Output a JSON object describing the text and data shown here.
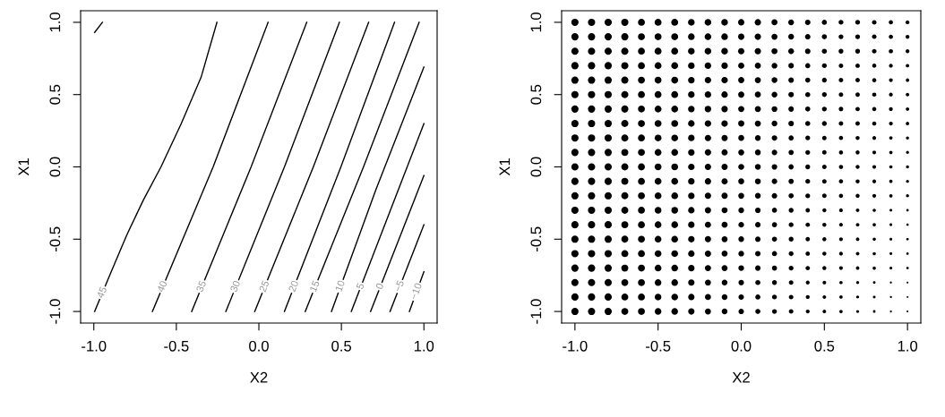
{
  "chart_data": [
    {
      "type": "line",
      "xlabel": "X2",
      "ylabel": "X1",
      "xlim": [
        -1.08,
        1.08
      ],
      "ylim": [
        -1.08,
        1.08
      ],
      "xticks": [
        {
          "value": -1,
          "label": "-1.0"
        },
        {
          "value": -0.5,
          "label": "-0.5"
        },
        {
          "value": 0,
          "label": "0.0"
        },
        {
          "value": 0.5,
          "label": "0.5"
        },
        {
          "value": 1,
          "label": "1.0"
        }
      ],
      "yticks": [
        {
          "value": -1,
          "label": "-1.0"
        },
        {
          "value": -0.5,
          "label": "-0.5"
        },
        {
          "value": 0,
          "label": "0.0"
        },
        {
          "value": 0.5,
          "label": "0.5"
        },
        {
          "value": 1,
          "label": "1.0"
        }
      ],
      "grid": false,
      "legend": false,
      "marker": "none",
      "line_style": "solid",
      "series": [
        {
          "color": "#000000",
          "x": [
            -0.995,
            -0.948
          ],
          "values": [
            0.93,
            1.0
          ]
        },
        {
          "name": "45",
          "color": "#000000",
          "x": [
            -0.995,
            -0.9,
            -0.8,
            -0.7,
            -0.593,
            -0.47,
            -0.35,
            -0.254
          ],
          "values": [
            -1.0,
            -0.74,
            -0.47,
            -0.23,
            0.0,
            0.3,
            0.62,
            1.0
          ]
        },
        {
          "name": "40",
          "color": "#000000",
          "x": [
            -0.645,
            -0.277,
            0.056
          ],
          "values": [
            -1.0,
            0.0,
            1.0
          ]
        },
        {
          "name": "35",
          "color": "#000000",
          "x": [
            -0.407,
            -0.047,
            0.29
          ],
          "values": [
            -1.0,
            0.0,
            1.0
          ]
        },
        {
          "name": "30",
          "color": "#000000",
          "x": [
            -0.2,
            0.155,
            0.488
          ],
          "values": [
            -1.0,
            0.0,
            1.0
          ]
        },
        {
          "name": "25",
          "color": "#000000",
          "x": [
            -0.025,
            0.33,
            0.665
          ],
          "values": [
            -1.0,
            0.0,
            1.0
          ]
        },
        {
          "name": "20",
          "color": "#000000",
          "x": [
            0.155,
            0.497,
            0.822
          ],
          "values": [
            -1.0,
            0.0,
            1.0
          ]
        },
        {
          "name": "15",
          "color": "#000000",
          "x": [
            0.281,
            0.634,
            0.971
          ],
          "values": [
            -1.0,
            0.0,
            1.0
          ]
        },
        {
          "name": "10",
          "color": "#000000",
          "x": [
            0.44,
            0.71,
            1.0
          ],
          "values": [
            -1.0,
            -0.155,
            0.69
          ]
        },
        {
          "name": "5",
          "color": "#000000",
          "x": [
            0.56,
            1.0
          ],
          "values": [
            -1.0,
            0.3
          ]
        },
        {
          "name": "0",
          "color": "#000000",
          "x": [
            0.677,
            1.0
          ],
          "values": [
            -1.0,
            -0.06
          ]
        },
        {
          "name": "−5",
          "color": "#000000",
          "x": [
            0.795,
            1.0
          ],
          "values": [
            -1.0,
            -0.4
          ]
        },
        {
          "name": "−10",
          "color": "#000000",
          "x": [
            0.912,
            1.0
          ],
          "values": [
            -1.0,
            -0.725
          ]
        }
      ]
    },
    {
      "type": "bubble",
      "xlabel": "X2",
      "ylabel": "X1",
      "xlim": [
        -1.08,
        1.08
      ],
      "ylim": [
        -1.08,
        1.08
      ],
      "xticks": [
        {
          "value": -1,
          "label": "-1.0"
        },
        {
          "value": -0.5,
          "label": "-0.5"
        },
        {
          "value": 0,
          "label": "0.0"
        },
        {
          "value": 0.5,
          "label": "0.5"
        },
        {
          "value": 1,
          "label": "1.0"
        }
      ],
      "yticks": [
        {
          "value": -1,
          "label": "-1.0"
        },
        {
          "value": -0.5,
          "label": "-0.5"
        },
        {
          "value": 0,
          "label": "0.0"
        },
        {
          "value": 0.5,
          "label": "0.5"
        },
        {
          "value": 1,
          "label": "1.0"
        }
      ],
      "grid": false,
      "legend": false,
      "marker": "circle",
      "x": [
        -1,
        -0.9,
        -0.8,
        -0.7,
        -0.6,
        -0.5,
        -0.4,
        -0.3,
        -0.2,
        -0.1,
        0,
        0.1,
        0.2,
        0.3,
        0.4,
        0.5,
        0.6,
        0.7,
        0.8,
        0.9,
        1
      ],
      "series": [
        {
          "color": "#000000",
          "values": [
            1,
            1,
            1,
            1,
            1,
            1,
            1,
            1,
            1,
            1,
            1,
            1,
            1,
            1,
            1,
            1,
            1,
            1,
            1,
            1,
            1
          ],
          "sizes": [
            1,
            1,
            1,
            1,
            0.92,
            0.92,
            0.92,
            0.84,
            0.84,
            0.84,
            0.77,
            0.77,
            0.69,
            0.63,
            0.56,
            0.5,
            0.44,
            0.44,
            0.39,
            0.34,
            0.29
          ]
        },
        {
          "color": "#000000",
          "values": [
            0.9,
            0.9,
            0.9,
            0.9,
            0.9,
            0.9,
            0.9,
            0.9,
            0.9,
            0.9,
            0.9,
            0.9,
            0.9,
            0.9,
            0.9,
            0.9,
            0.9,
            0.9,
            0.9,
            0.9,
            0.9
          ],
          "sizes": [
            1,
            1,
            1,
            1,
            0.92,
            0.92,
            0.92,
            0.84,
            0.84,
            0.84,
            0.77,
            0.77,
            0.69,
            0.63,
            0.56,
            0.5,
            0.44,
            0.44,
            0.39,
            0.34,
            0.29
          ]
        },
        {
          "color": "#000000",
          "values": [
            0.8,
            0.8,
            0.8,
            0.8,
            0.8,
            0.8,
            0.8,
            0.8,
            0.8,
            0.8,
            0.8,
            0.8,
            0.8,
            0.8,
            0.8,
            0.8,
            0.8,
            0.8,
            0.8,
            0.8,
            0.8
          ],
          "sizes": [
            1,
            1,
            1,
            1,
            0.92,
            0.92,
            0.92,
            0.84,
            0.84,
            0.84,
            0.77,
            0.77,
            0.69,
            0.63,
            0.56,
            0.5,
            0.44,
            0.44,
            0.39,
            0.34,
            0.29
          ]
        },
        {
          "color": "#000000",
          "values": [
            0.7,
            0.7,
            0.7,
            0.7,
            0.7,
            0.7,
            0.7,
            0.7,
            0.7,
            0.7,
            0.7,
            0.7,
            0.7,
            0.7,
            0.7,
            0.7,
            0.7,
            0.7,
            0.7,
            0.7,
            0.7
          ],
          "sizes": [
            1,
            1,
            1,
            0.98,
            0.92,
            0.9,
            0.9,
            0.82,
            0.8,
            0.79,
            0.72,
            0.7,
            0.63,
            0.57,
            0.49,
            0.44,
            0.38,
            0.37,
            0.33,
            0.28,
            0.23
          ]
        },
        {
          "color": "#000000",
          "values": [
            0.6,
            0.6,
            0.6,
            0.6,
            0.6,
            0.6,
            0.6,
            0.6,
            0.6,
            0.6,
            0.6,
            0.6,
            0.6,
            0.6,
            0.6,
            0.6,
            0.6,
            0.6,
            0.6,
            0.6,
            0.6
          ],
          "sizes": [
            1,
            1,
            1,
            0.98,
            0.92,
            0.9,
            0.9,
            0.82,
            0.8,
            0.79,
            0.72,
            0.7,
            0.63,
            0.57,
            0.49,
            0.44,
            0.38,
            0.37,
            0.33,
            0.28,
            0.23
          ]
        },
        {
          "color": "#000000",
          "values": [
            0.5,
            0.5,
            0.5,
            0.5,
            0.5,
            0.5,
            0.5,
            0.5,
            0.5,
            0.5,
            0.5,
            0.5,
            0.5,
            0.5,
            0.5,
            0.5,
            0.5,
            0.5,
            0.5,
            0.5,
            0.5
          ],
          "sizes": [
            1,
            1,
            1,
            0.98,
            0.92,
            0.9,
            0.9,
            0.82,
            0.8,
            0.79,
            0.72,
            0.7,
            0.63,
            0.57,
            0.49,
            0.44,
            0.38,
            0.37,
            0.33,
            0.28,
            0.23
          ]
        },
        {
          "color": "#000000",
          "values": [
            0.4,
            0.4,
            0.4,
            0.4,
            0.4,
            0.4,
            0.4,
            0.4,
            0.4,
            0.4,
            0.4,
            0.4,
            0.4,
            0.4,
            0.4,
            0.4,
            0.4,
            0.4,
            0.4,
            0.4,
            0.4
          ],
          "sizes": [
            1,
            1,
            1,
            0.98,
            0.92,
            0.9,
            0.9,
            0.82,
            0.8,
            0.79,
            0.72,
            0.7,
            0.63,
            0.57,
            0.49,
            0.44,
            0.38,
            0.37,
            0.33,
            0.28,
            0.23
          ]
        },
        {
          "color": "#000000",
          "values": [
            0.3,
            0.3,
            0.3,
            0.3,
            0.3,
            0.3,
            0.3,
            0.3,
            0.3,
            0.3,
            0.3,
            0.3,
            0.3,
            0.3,
            0.3,
            0.3,
            0.3,
            0.3,
            0.3,
            0.3,
            0.3
          ],
          "sizes": [
            1,
            1,
            1,
            0.98,
            0.92,
            0.9,
            0.9,
            0.82,
            0.8,
            0.79,
            0.72,
            0.7,
            0.63,
            0.57,
            0.49,
            0.44,
            0.38,
            0.37,
            0.33,
            0.28,
            0.23
          ]
        },
        {
          "color": "#000000",
          "values": [
            0.2,
            0.2,
            0.2,
            0.2,
            0.2,
            0.2,
            0.2,
            0.2,
            0.2,
            0.2,
            0.2,
            0.2,
            0.2,
            0.2,
            0.2,
            0.2,
            0.2,
            0.2,
            0.2,
            0.2,
            0.2
          ],
          "sizes": [
            1,
            1,
            1,
            0.96,
            0.92,
            0.88,
            0.88,
            0.8,
            0.77,
            0.74,
            0.67,
            0.64,
            0.57,
            0.51,
            0.43,
            0.38,
            0.33,
            0.31,
            0.27,
            0.21,
            0.18
          ]
        },
        {
          "color": "#000000",
          "values": [
            0.1,
            0.1,
            0.1,
            0.1,
            0.1,
            0.1,
            0.1,
            0.1,
            0.1,
            0.1,
            0.1,
            0.1,
            0.1,
            0.1,
            0.1,
            0.1,
            0.1,
            0.1,
            0.1,
            0.1,
            0.1
          ],
          "sizes": [
            1,
            1,
            1,
            0.96,
            0.92,
            0.88,
            0.88,
            0.8,
            0.77,
            0.74,
            0.67,
            0.64,
            0.57,
            0.51,
            0.43,
            0.38,
            0.33,
            0.31,
            0.27,
            0.21,
            0.18
          ]
        },
        {
          "color": "#000000",
          "values": [
            0,
            0,
            0,
            0,
            0,
            0,
            0,
            0,
            0,
            0,
            0,
            0,
            0,
            0,
            0,
            0,
            0,
            0,
            0,
            0,
            0
          ],
          "sizes": [
            1,
            1,
            1,
            0.96,
            0.92,
            0.88,
            0.88,
            0.8,
            0.77,
            0.74,
            0.67,
            0.64,
            0.57,
            0.51,
            0.43,
            0.38,
            0.33,
            0.31,
            0.27,
            0.21,
            0.18
          ]
        },
        {
          "color": "#000000",
          "values": [
            -0.1,
            -0.1,
            -0.1,
            -0.1,
            -0.1,
            -0.1,
            -0.1,
            -0.1,
            -0.1,
            -0.1,
            -0.1,
            -0.1,
            -0.1,
            -0.1,
            -0.1,
            -0.1,
            -0.1,
            -0.1,
            -0.1,
            -0.1,
            -0.1
          ],
          "sizes": [
            1,
            1,
            1,
            0.96,
            0.92,
            0.88,
            0.88,
            0.8,
            0.77,
            0.74,
            0.67,
            0.64,
            0.57,
            0.51,
            0.43,
            0.38,
            0.33,
            0.31,
            0.27,
            0.21,
            0.18
          ]
        },
        {
          "color": "#000000",
          "values": [
            -0.2,
            -0.2,
            -0.2,
            -0.2,
            -0.2,
            -0.2,
            -0.2,
            -0.2,
            -0.2,
            -0.2,
            -0.2,
            -0.2,
            -0.2,
            -0.2,
            -0.2,
            -0.2,
            -0.2,
            -0.2,
            -0.2,
            -0.2,
            -0.2
          ],
          "sizes": [
            1,
            1,
            1,
            0.96,
            0.92,
            0.88,
            0.88,
            0.8,
            0.77,
            0.74,
            0.67,
            0.64,
            0.57,
            0.51,
            0.43,
            0.38,
            0.33,
            0.31,
            0.27,
            0.21,
            0.18
          ]
        },
        {
          "color": "#000000",
          "values": [
            -0.3,
            -0.3,
            -0.3,
            -0.3,
            -0.3,
            -0.3,
            -0.3,
            -0.3,
            -0.3,
            -0.3,
            -0.3,
            -0.3,
            -0.3,
            -0.3,
            -0.3,
            -0.3,
            -0.3,
            -0.3,
            -0.3,
            -0.3,
            -0.3
          ],
          "sizes": [
            1,
            1,
            1,
            0.94,
            0.92,
            0.86,
            0.86,
            0.79,
            0.73,
            0.68,
            0.61,
            0.57,
            0.5,
            0.45,
            0.36,
            0.31,
            0.27,
            0.24,
            0.2,
            0.15,
            0.12
          ]
        },
        {
          "color": "#000000",
          "values": [
            -0.4,
            -0.4,
            -0.4,
            -0.4,
            -0.4,
            -0.4,
            -0.4,
            -0.4,
            -0.4,
            -0.4,
            -0.4,
            -0.4,
            -0.4,
            -0.4,
            -0.4,
            -0.4,
            -0.4,
            -0.4,
            -0.4,
            -0.4,
            -0.4
          ],
          "sizes": [
            1,
            1,
            1,
            0.94,
            0.92,
            0.86,
            0.86,
            0.79,
            0.73,
            0.68,
            0.61,
            0.57,
            0.5,
            0.45,
            0.36,
            0.31,
            0.27,
            0.24,
            0.2,
            0.15,
            0.12
          ]
        },
        {
          "color": "#000000",
          "values": [
            -0.5,
            -0.5,
            -0.5,
            -0.5,
            -0.5,
            -0.5,
            -0.5,
            -0.5,
            -0.5,
            -0.5,
            -0.5,
            -0.5,
            -0.5,
            -0.5,
            -0.5,
            -0.5,
            -0.5,
            -0.5,
            -0.5,
            -0.5,
            -0.5
          ],
          "sizes": [
            1,
            1,
            1,
            0.94,
            0.92,
            0.86,
            0.86,
            0.79,
            0.73,
            0.68,
            0.61,
            0.57,
            0.5,
            0.45,
            0.36,
            0.31,
            0.27,
            0.24,
            0.2,
            0.15,
            0.12
          ]
        },
        {
          "color": "#000000",
          "values": [
            -0.6,
            -0.6,
            -0.6,
            -0.6,
            -0.6,
            -0.6,
            -0.6,
            -0.6,
            -0.6,
            -0.6,
            -0.6,
            -0.6,
            -0.6,
            -0.6,
            -0.6,
            -0.6,
            -0.6,
            -0.6,
            -0.6,
            -0.6,
            -0.6
          ],
          "sizes": [
            1,
            1,
            1,
            0.94,
            0.92,
            0.86,
            0.86,
            0.79,
            0.73,
            0.68,
            0.61,
            0.57,
            0.5,
            0.45,
            0.36,
            0.31,
            0.27,
            0.24,
            0.2,
            0.15,
            0.12
          ]
        },
        {
          "color": "#000000",
          "values": [
            -0.7,
            -0.7,
            -0.7,
            -0.7,
            -0.7,
            -0.7,
            -0.7,
            -0.7,
            -0.7,
            -0.7,
            -0.7,
            -0.7,
            -0.7,
            -0.7,
            -0.7,
            -0.7,
            -0.7,
            -0.7,
            -0.7,
            -0.7,
            -0.7
          ],
          "sizes": [
            1,
            1,
            1,
            0.94,
            0.92,
            0.86,
            0.86,
            0.79,
            0.73,
            0.68,
            0.61,
            0.57,
            0.5,
            0.45,
            0.36,
            0.31,
            0.27,
            0.24,
            0.2,
            0.15,
            0.12
          ]
        },
        {
          "color": "#000000",
          "values": [
            -0.8,
            -0.8,
            -0.8,
            -0.8,
            -0.8,
            -0.8,
            -0.8,
            -0.8,
            -0.8,
            -0.8,
            -0.8,
            -0.8,
            -0.8,
            -0.8,
            -0.8,
            -0.8,
            -0.8,
            -0.8,
            -0.8,
            -0.8,
            -0.8
          ],
          "sizes": [
            1,
            1,
            1,
            0.92,
            0.92,
            0.84,
            0.84,
            0.77,
            0.69,
            0.63,
            0.56,
            0.5,
            0.44,
            0.39,
            0.29,
            0.25,
            0.21,
            0.17,
            0.14,
            0.08,
            0.06
          ]
        },
        {
          "color": "#000000",
          "values": [
            -0.9,
            -0.9,
            -0.9,
            -0.9,
            -0.9,
            -0.9,
            -0.9,
            -0.9,
            -0.9,
            -0.9,
            -0.9,
            -0.9,
            -0.9,
            -0.9,
            -0.9,
            -0.9,
            -0.9,
            -0.9,
            -0.9,
            -0.9,
            -0.9
          ],
          "sizes": [
            1,
            1,
            1,
            0.92,
            0.92,
            0.84,
            0.84,
            0.77,
            0.69,
            0.63,
            0.56,
            0.5,
            0.44,
            0.39,
            0.29,
            0.25,
            0.21,
            0.17,
            0.14,
            0.08,
            0.06
          ]
        },
        {
          "color": "#000000",
          "values": [
            -1,
            -1,
            -1,
            -1,
            -1,
            -1,
            -1,
            -1,
            -1,
            -1,
            -1,
            -1,
            -1,
            -1,
            -1,
            -1,
            -1,
            -1,
            -1,
            -1,
            -1
          ],
          "sizes": [
            1,
            1,
            1,
            0.92,
            0.92,
            0.84,
            0.84,
            0.77,
            0.69,
            0.63,
            0.56,
            0.5,
            0.44,
            0.39,
            0.29,
            0.25,
            0.21,
            0.17,
            0.14,
            0.08,
            0.06
          ]
        }
      ]
    }
  ]
}
